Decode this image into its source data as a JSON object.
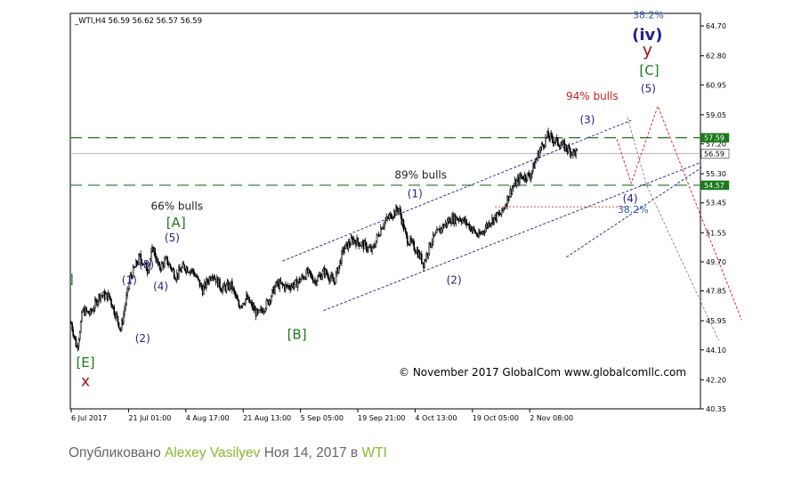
{
  "chart_data": {
    "type": "candlestick",
    "title": "_WTI,H4  56.59 56.62 56.57 56.59",
    "ylim": [
      40.35,
      65.5
    ],
    "y_ticks": [
      "64.70",
      "62.80",
      "60.95",
      "59.05",
      "57.20",
      "55.30",
      "53.45",
      "51.55",
      "49.70",
      "47.85",
      "45.95",
      "44.10",
      "42.20",
      "40.35"
    ],
    "x_ticks": [
      "6 Jul 2017",
      "21 Jul 01:00",
      "4 Aug 17:00",
      "21 Aug 13:00",
      "5 Sep 05:00",
      "19 Sep 21:00",
      "4 Oct 13:00",
      "19 Oct 05:00",
      "2 Nov 08:00"
    ],
    "price_path": [
      [
        0,
        45.8
      ],
      [
        6,
        44.2
      ],
      [
        12,
        46.6
      ],
      [
        20,
        46.4
      ],
      [
        30,
        47.6
      ],
      [
        40,
        47.5
      ],
      [
        52,
        45.4
      ],
      [
        62,
        48.7
      ],
      [
        72,
        50.0
      ],
      [
        80,
        49.2
      ],
      [
        86,
        50.6
      ],
      [
        92,
        49.3
      ],
      [
        100,
        49.8
      ],
      [
        110,
        48.8
      ],
      [
        118,
        49.4
      ],
      [
        128,
        49.1
      ],
      [
        138,
        47.9
      ],
      [
        148,
        49.0
      ],
      [
        158,
        48.0
      ],
      [
        168,
        48.2
      ],
      [
        176,
        46.9
      ],
      [
        184,
        47.4
      ],
      [
        196,
        46.3
      ],
      [
        206,
        47.1
      ],
      [
        216,
        48.3
      ],
      [
        226,
        48.1
      ],
      [
        236,
        48.3
      ],
      [
        248,
        49.0
      ],
      [
        256,
        48.5
      ],
      [
        266,
        49.1
      ],
      [
        276,
        48.4
      ],
      [
        286,
        50.5
      ],
      [
        296,
        51.1
      ],
      [
        306,
        50.8
      ],
      [
        316,
        50.4
      ],
      [
        326,
        52.0
      ],
      [
        336,
        52.7
      ],
      [
        344,
        53.1
      ],
      [
        352,
        51.2
      ],
      [
        362,
        50.5
      ],
      [
        370,
        49.6
      ],
      [
        378,
        51.0
      ],
      [
        388,
        51.8
      ],
      [
        398,
        52.4
      ],
      [
        408,
        52.5
      ],
      [
        418,
        52.0
      ],
      [
        428,
        51.3
      ],
      [
        440,
        52.3
      ],
      [
        452,
        52.8
      ],
      [
        462,
        54.3
      ],
      [
        472,
        55.1
      ],
      [
        482,
        55.2
      ],
      [
        492,
        56.8
      ],
      [
        500,
        57.7
      ],
      [
        508,
        57.4
      ],
      [
        516,
        57.1
      ],
      [
        526,
        56.7
      ],
      [
        532,
        56.6
      ]
    ],
    "axis_labels": [
      {
        "tag": "57.59",
        "value": 57.59,
        "box": "#1a7a1a",
        "color": "#ffffff"
      },
      {
        "tag": "56.59",
        "value": 56.59,
        "box": "#ffffff",
        "color": "#000000"
      },
      {
        "tag": "54.57",
        "value": 54.57,
        "box": "#1a7a1a",
        "color": "#ffffff"
      }
    ],
    "horizontal_lines": [
      {
        "value": 57.59,
        "color": "#1a7a1a",
        "dash": "13,7"
      },
      {
        "value": 54.57,
        "color": "#1a7a1a",
        "dash": "13,7"
      },
      {
        "value": 56.59,
        "color": "#aaaaaa",
        "dash": ""
      }
    ],
    "retracement": {
      "start": 445,
      "end": 588,
      "value": 53.2,
      "label": "38.2%",
      "color": "#b73a3a"
    },
    "channels": [
      {
        "from": [
          222,
          49.75
        ],
        "to": [
          588,
          58.7
        ]
      },
      {
        "from": [
          265,
          46.6
        ],
        "to": [
          660,
          56.0
        ]
      },
      {
        "from": [
          520,
          50.0
        ],
        "to": [
          662,
          55.7
        ]
      }
    ],
    "forecast": [
      {
        "color": "#cc2020",
        "points": [
          [
            573,
            57.5
          ],
          [
            588,
            54.7
          ],
          [
            616,
            59.6
          ],
          [
            704,
            46.0
          ]
        ]
      },
      {
        "color": "#888888",
        "points": [
          [
            584,
            58.9
          ],
          [
            604,
            54.6
          ],
          [
            680,
            44.7
          ]
        ]
      }
    ],
    "annotations": [
      {
        "text": "]",
        "x": 0,
        "y": 48.3,
        "color": "#1a7a1a",
        "size": 14
      },
      {
        "text": "[E]",
        "x": 15,
        "y": 43.0,
        "color": "#1a7a1a",
        "size": 15
      },
      {
        "text": "x",
        "x": 15,
        "y": 41.8,
        "color": "#a31515",
        "size": 17
      },
      {
        "text": "(1)",
        "x": 61,
        "y": 48.3,
        "color": "#22228a",
        "size": 12
      },
      {
        "text": "(2)",
        "x": 75,
        "y": 44.6,
        "color": "#22228a",
        "size": 12
      },
      {
        "text": "(3)",
        "x": 79,
        "y": 49.3,
        "color": "#22228a",
        "size": 12
      },
      {
        "text": "(4)",
        "x": 94,
        "y": 47.9,
        "color": "#22228a",
        "size": 12
      },
      {
        "text": "(5)",
        "x": 106,
        "y": 51.0,
        "color": "#22228a",
        "size": 12
      },
      {
        "text": "[A]",
        "x": 110,
        "y": 51.9,
        "color": "#1a7a1a",
        "size": 15
      },
      {
        "text": "66% bulls",
        "x": 111,
        "y": 53.0,
        "color": "#222222",
        "size": 12
      },
      {
        "text": "[B]",
        "x": 237,
        "y": 44.8,
        "color": "#1a7a1a",
        "size": 15
      },
      {
        "text": "89% bulls",
        "x": 367,
        "y": 55.0,
        "color": "#222222",
        "size": 12
      },
      {
        "text": "(1)",
        "x": 361,
        "y": 53.8,
        "color": "#22228a",
        "size": 12
      },
      {
        "text": "(2)",
        "x": 402,
        "y": 48.3,
        "color": "#22228a",
        "size": 12
      },
      {
        "text": "(3)",
        "x": 542,
        "y": 58.5,
        "color": "#22228a",
        "size": 12
      },
      {
        "text": "(4)",
        "x": 587,
        "y": 53.5,
        "color": "#22228a",
        "size": 12
      },
      {
        "text": "94% bulls",
        "x": 547,
        "y": 60.0,
        "color": "#cc2020",
        "size": 12
      },
      {
        "text": "(5)",
        "x": 606,
        "y": 60.5,
        "color": "#22228a",
        "size": 12
      },
      {
        "text": "[C]",
        "x": 607,
        "y": 61.6,
        "color": "#1a7a1a",
        "size": 15
      },
      {
        "text": "y",
        "x": 605,
        "y": 62.8,
        "color": "#a31515",
        "size": 19
      },
      {
        "text": "(iv)",
        "x": 605,
        "y": 63.8,
        "color": "#22228a",
        "size": 18,
        "bold": true
      },
      {
        "text": "38.2%",
        "x": 606,
        "y": 65.2,
        "color": "#2d5bb5",
        "size": 11
      },
      {
        "text": "38.2%",
        "x": 590,
        "y": 52.8,
        "color": "#2d5bb5",
        "size": 11
      }
    ],
    "watermark": "© November 2017 GlobalCom www.globalcomllc.com",
    "grid": false,
    "legend": "none"
  },
  "byline": {
    "prefix": "Опубликовано ",
    "author": "Alexey Vasilyev",
    "date": " Ноя 14, 2017 в ",
    "tag": "WTI"
  }
}
